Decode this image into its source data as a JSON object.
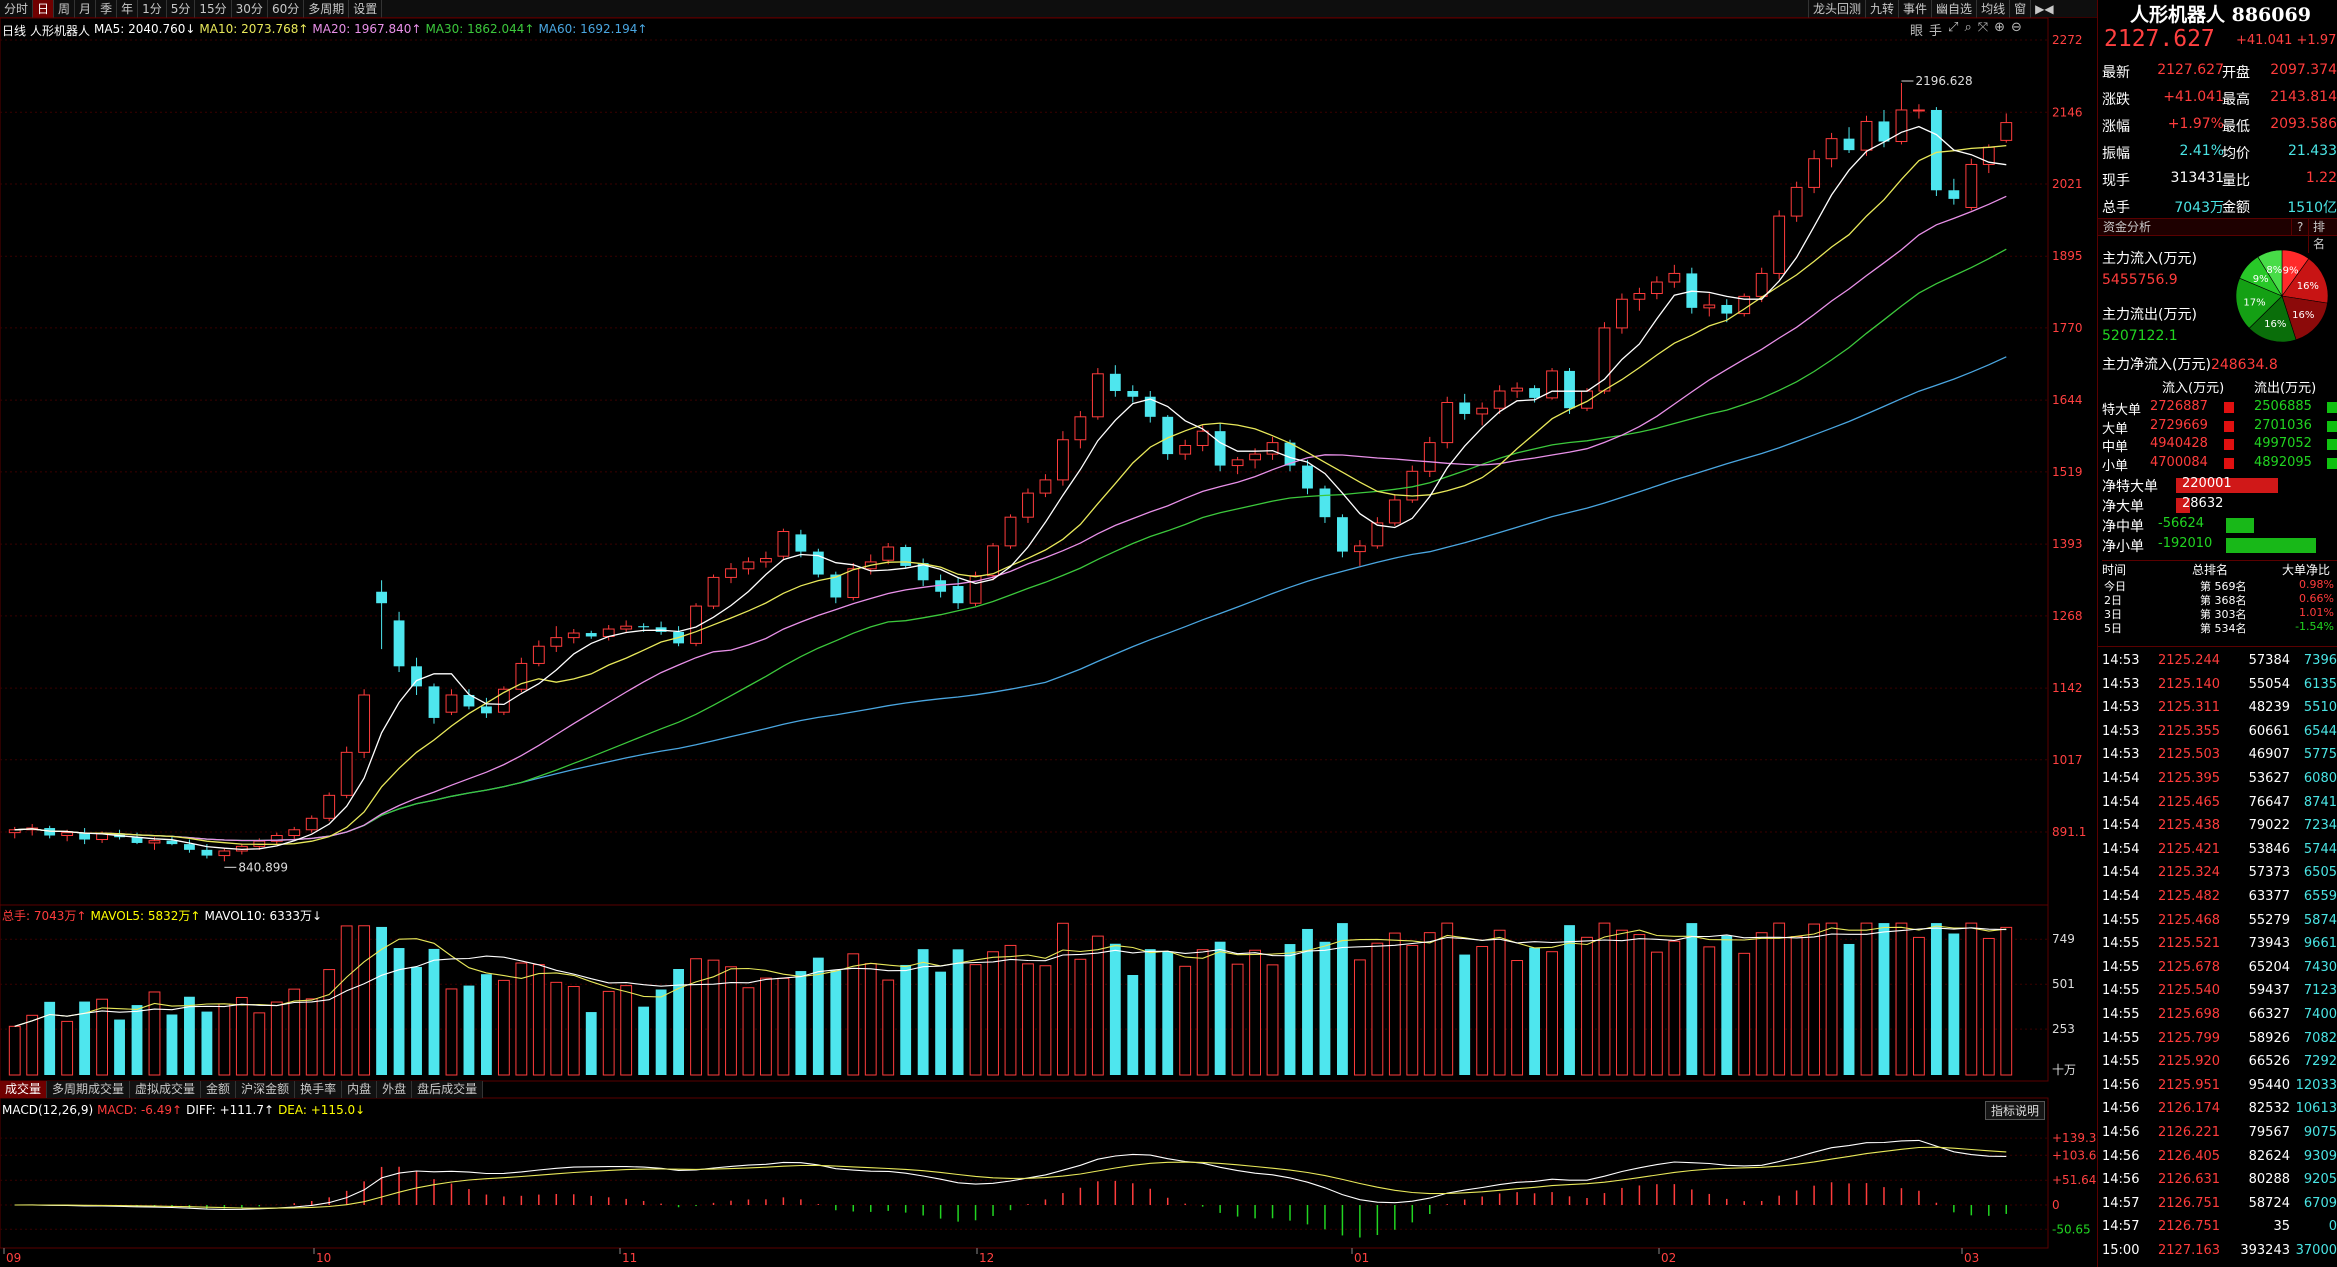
{
  "toolbar": {
    "period_tabs": [
      "分时",
      "日",
      "周",
      "月",
      "季",
      "年",
      "1分",
      "5分",
      "15分",
      "30分",
      "60分",
      "多周期",
      "设置"
    ],
    "active_period": "日",
    "right_tabs": [
      "龙头回测",
      "九转",
      "事件",
      "幽自选",
      "均线",
      "窗",
      "▶◀"
    ],
    "tool_icons": [
      "眼",
      "手",
      "⤢",
      "⌕",
      "⤧",
      "⊕",
      "⊖"
    ]
  },
  "main_legend": {
    "period_label": "日线",
    "stock_name": "人形机器人",
    "ma5": "MA5: 2040.760↓",
    "ma10": "MA10: 2073.768↑",
    "ma20": "MA20: 1967.840↑",
    "ma30": "MA30: 1862.044↑",
    "ma60": "MA60: 1692.194↑"
  },
  "price_axis": [
    "2272",
    "2146",
    "2021",
    "1895",
    "1770",
    "1644",
    "1519",
    "1393",
    "1268",
    "1142",
    "1017",
    "891.1"
  ],
  "annotations": {
    "high": "2196.628",
    "low": "840.899"
  },
  "vol_legend": {
    "total": "总手: 7043万↑",
    "mavol5": "MAVOL5: 5832万↑",
    "mavol10": "MAVOL10: 6333万↓"
  },
  "vol_axis": [
    "749",
    "501",
    "253",
    "十万"
  ],
  "indicator_tabs": [
    "成交量",
    "多周期成交量",
    "虚拟成交量",
    "金额",
    "沪深金额",
    "换手率",
    "内盘",
    "外盘",
    "盘后成交量"
  ],
  "active_indicator": "成交量",
  "indicator_explain": "指标说明",
  "macd_legend": {
    "name": "MACD(12,26,9)",
    "macd": "MACD: -6.49↑",
    "diff": "DIFF: +111.7↑",
    "dea": "DEA: +115.0↓"
  },
  "macd_axis": [
    "+139.3",
    "+103.6",
    "+51.64",
    "0",
    "-50.65"
  ],
  "x_axis": [
    "09",
    "10",
    "11",
    "12",
    "01",
    "02",
    "03"
  ],
  "colors": {
    "up": "#ff3c3c",
    "down": "#4ee6ee",
    "ma5": "#ffffff",
    "ma10": "#e8e85a",
    "ma20": "#e890e8",
    "ma30": "#3cc83c",
    "ma60": "#4aa6e0"
  },
  "chart_data": {
    "type": "candlestick",
    "x_months": [
      "09",
      "10",
      "11",
      "12",
      "01",
      "02",
      "03"
    ],
    "ylim": [
      840,
      2272
    ],
    "candles": [
      [
        890,
        900,
        880,
        895
      ],
      [
        895,
        905,
        885,
        898
      ],
      [
        898,
        902,
        880,
        885
      ],
      [
        885,
        895,
        875,
        890
      ],
      [
        890,
        898,
        870,
        878
      ],
      [
        878,
        892,
        872,
        888
      ],
      [
        888,
        895,
        878,
        882
      ],
      [
        882,
        890,
        870,
        872
      ],
      [
        872,
        882,
        860,
        876
      ],
      [
        876,
        885,
        868,
        870
      ],
      [
        870,
        878,
        855,
        860
      ],
      [
        860,
        870,
        845,
        850
      ],
      [
        850,
        862,
        840,
        858
      ],
      [
        858,
        870,
        852,
        866
      ],
      [
        866,
        880,
        860,
        875
      ],
      [
        875,
        890,
        870,
        885
      ],
      [
        885,
        900,
        878,
        895
      ],
      [
        895,
        920,
        890,
        915
      ],
      [
        915,
        960,
        910,
        955
      ],
      [
        955,
        1040,
        950,
        1030
      ],
      [
        1030,
        1140,
        1020,
        1130
      ],
      [
        1310,
        1330,
        1210,
        1290
      ],
      [
        1260,
        1275,
        1170,
        1180
      ],
      [
        1180,
        1195,
        1130,
        1145
      ],
      [
        1145,
        1150,
        1080,
        1090
      ],
      [
        1100,
        1140,
        1095,
        1130
      ],
      [
        1130,
        1140,
        1105,
        1110
      ],
      [
        1110,
        1125,
        1090,
        1098
      ],
      [
        1100,
        1145,
        1095,
        1140
      ],
      [
        1140,
        1195,
        1135,
        1185
      ],
      [
        1185,
        1225,
        1180,
        1215
      ],
      [
        1215,
        1250,
        1205,
        1230
      ],
      [
        1230,
        1245,
        1220,
        1238
      ],
      [
        1238,
        1242,
        1228,
        1232
      ],
      [
        1232,
        1252,
        1225,
        1245
      ],
      [
        1245,
        1260,
        1240,
        1250
      ],
      [
        1250,
        1255,
        1240,
        1248
      ],
      [
        1248,
        1258,
        1235,
        1240
      ],
      [
        1240,
        1250,
        1215,
        1220
      ],
      [
        1220,
        1290,
        1215,
        1285
      ],
      [
        1285,
        1340,
        1280,
        1335
      ],
      [
        1335,
        1360,
        1325,
        1350
      ],
      [
        1350,
        1370,
        1340,
        1362
      ],
      [
        1362,
        1380,
        1352,
        1368
      ],
      [
        1372,
        1420,
        1365,
        1415
      ],
      [
        1410,
        1418,
        1370,
        1380
      ],
      [
        1380,
        1385,
        1335,
        1340
      ],
      [
        1340,
        1345,
        1290,
        1300
      ],
      [
        1300,
        1360,
        1295,
        1350
      ],
      [
        1350,
        1375,
        1340,
        1362
      ],
      [
        1365,
        1395,
        1358,
        1388
      ],
      [
        1388,
        1392,
        1350,
        1355
      ],
      [
        1360,
        1368,
        1320,
        1330
      ],
      [
        1330,
        1340,
        1300,
        1310
      ],
      [
        1320,
        1335,
        1280,
        1290
      ],
      [
        1290,
        1345,
        1285,
        1338
      ],
      [
        1338,
        1395,
        1330,
        1390
      ],
      [
        1390,
        1445,
        1385,
        1440
      ],
      [
        1440,
        1490,
        1430,
        1482
      ],
      [
        1482,
        1515,
        1475,
        1505
      ],
      [
        1505,
        1590,
        1495,
        1575
      ],
      [
        1575,
        1625,
        1560,
        1615
      ],
      [
        1615,
        1700,
        1610,
        1690
      ],
      [
        1690,
        1705,
        1650,
        1660
      ],
      [
        1660,
        1670,
        1640,
        1650
      ],
      [
        1650,
        1660,
        1605,
        1615
      ],
      [
        1615,
        1618,
        1540,
        1550
      ],
      [
        1550,
        1575,
        1540,
        1565
      ],
      [
        1565,
        1600,
        1555,
        1590
      ],
      [
        1590,
        1605,
        1520,
        1530
      ],
      [
        1530,
        1545,
        1515,
        1540
      ],
      [
        1540,
        1560,
        1525,
        1550
      ],
      [
        1550,
        1580,
        1540,
        1570
      ],
      [
        1570,
        1575,
        1520,
        1530
      ],
      [
        1530,
        1540,
        1480,
        1490
      ],
      [
        1490,
        1495,
        1430,
        1440
      ],
      [
        1440,
        1445,
        1370,
        1380
      ],
      [
        1380,
        1400,
        1355,
        1390
      ],
      [
        1390,
        1440,
        1385,
        1430
      ],
      [
        1430,
        1480,
        1425,
        1470
      ],
      [
        1470,
        1530,
        1465,
        1520
      ],
      [
        1520,
        1580,
        1510,
        1570
      ],
      [
        1570,
        1650,
        1560,
        1640
      ],
      [
        1640,
        1655,
        1610,
        1620
      ],
      [
        1620,
        1640,
        1600,
        1630
      ],
      [
        1630,
        1670,
        1620,
        1660
      ],
      [
        1660,
        1675,
        1648,
        1665
      ],
      [
        1665,
        1670,
        1640,
        1648
      ],
      [
        1648,
        1700,
        1645,
        1695
      ],
      [
        1695,
        1700,
        1620,
        1630
      ],
      [
        1630,
        1665,
        1625,
        1660
      ],
      [
        1660,
        1780,
        1655,
        1770
      ],
      [
        1770,
        1830,
        1760,
        1820
      ],
      [
        1820,
        1840,
        1800,
        1830
      ],
      [
        1830,
        1860,
        1820,
        1850
      ],
      [
        1850,
        1880,
        1840,
        1865
      ],
      [
        1865,
        1875,
        1795,
        1805
      ],
      [
        1805,
        1830,
        1790,
        1810
      ],
      [
        1810,
        1820,
        1780,
        1795
      ],
      [
        1795,
        1830,
        1790,
        1825
      ],
      [
        1825,
        1875,
        1815,
        1865
      ],
      [
        1865,
        1975,
        1855,
        1965
      ],
      [
        1965,
        2025,
        1955,
        2015
      ],
      [
        2015,
        2080,
        2005,
        2065
      ],
      [
        2065,
        2110,
        2050,
        2100
      ],
      [
        2100,
        2120,
        2075,
        2080
      ],
      [
        2080,
        2140,
        2070,
        2130
      ],
      [
        2130,
        2150,
        2085,
        2095
      ],
      [
        2095,
        2197,
        2090,
        2150
      ],
      [
        2150,
        2160,
        2135,
        2150
      ],
      [
        2150,
        2155,
        2000,
        2010
      ],
      [
        2010,
        2030,
        1985,
        1995
      ],
      [
        1980,
        2065,
        1975,
        2055
      ],
      [
        2055,
        2090,
        2040,
        2085
      ],
      [
        2097,
        2144,
        2093,
        2128
      ]
    ],
    "volume_total": "7043万",
    "macd": {
      "diff": 111.7,
      "dea": 115.0,
      "macd": -6.49
    }
  },
  "panel": {
    "title": "人形机器人 886069",
    "price": "2127.627",
    "change": "+41.041",
    "change_pct": "+1.97%",
    "quote": [
      {
        "l1": "最新",
        "v1": "2127.627",
        "c1": "red",
        "l2": "开盘",
        "v2": "2097.374",
        "c2": "red"
      },
      {
        "l1": "涨跌",
        "v1": "+41.041",
        "c1": "red",
        "l2": "最高",
        "v2": "2143.814",
        "c2": "red"
      },
      {
        "l1": "涨幅",
        "v1": "+1.97%",
        "c1": "red",
        "l2": "最低",
        "v2": "2093.586",
        "c2": "red"
      },
      {
        "l1": "振幅",
        "v1": "2.41%",
        "c1": "cyan",
        "l2": "均价",
        "v2": "21.433",
        "c2": "cyan"
      },
      {
        "l1": "现手",
        "v1": "313431",
        "c1": "white",
        "l2": "量比",
        "v2": "1.22",
        "c2": "red"
      },
      {
        "l1": "总手",
        "v1": "7043万",
        "c1": "cyan",
        "l2": "金额",
        "v2": "1510亿",
        "c2": "cyan"
      }
    ],
    "fund_head": "资金分析",
    "fund_head_q": "?",
    "fund_head_rank": "排名",
    "inflow_label": "主力流入(万元)",
    "inflow_value": "5455756.9",
    "outflow_label": "主力流出(万元)",
    "outflow_value": "5207122.1",
    "net_label": "主力净流入(万元)",
    "net_value": "248634.8",
    "pie": [
      {
        "label": "9%",
        "value": 9,
        "color": "#ff2a2a"
      },
      {
        "label": "16%",
        "value": 16,
        "color": "#c81414"
      },
      {
        "label": "16%",
        "value": 16,
        "color": "#8c0a0a"
      },
      {
        "label": "16%",
        "value": 16,
        "color": "#0a6e0a"
      },
      {
        "label": "17%",
        "value": 17,
        "color": "#14a014"
      },
      {
        "label": "9%",
        "value": 9,
        "color": "#28c828"
      },
      {
        "label": "8%",
        "value": 8,
        "color": "#48dc48"
      }
    ],
    "flow_cols": {
      "in": "流入(万元)",
      "out": "流出(万元)"
    },
    "flow_rows": [
      {
        "name": "特大单",
        "in": "2726887",
        "out": "2506885"
      },
      {
        "name": "大单",
        "in": "2729669",
        "out": "2701036"
      },
      {
        "name": "中单",
        "in": "4940428",
        "out": "4997052"
      },
      {
        "name": "小单",
        "in": "4700084",
        "out": "4892095"
      }
    ],
    "net_rows": [
      {
        "name": "净特大单",
        "value": "220001",
        "sign": 1,
        "mag": 0.93
      },
      {
        "name": "净大单",
        "value": "28632",
        "sign": 1,
        "mag": 0.13
      },
      {
        "name": "净中单",
        "value": "-56624",
        "sign": -1,
        "mag": 0.25
      },
      {
        "name": "净小单",
        "value": "-192010",
        "sign": -1,
        "mag": 0.82
      }
    ],
    "rank_cols": {
      "time": "时间",
      "rank": "总排名",
      "net": "大单净比"
    },
    "rank_rows": [
      {
        "time": "今日",
        "rank": "第 569名",
        "net": "0.98%"
      },
      {
        "time": "2日",
        "rank": "第 368名",
        "net": "0.66%"
      },
      {
        "time": "3日",
        "rank": "第 303名",
        "net": "1.01%"
      },
      {
        "time": "5日",
        "rank": "第 534名",
        "net": "-1.54%"
      }
    ],
    "ticks": [
      {
        "t": "14:53",
        "p": "2125.244",
        "v": "57384",
        "n": "7396"
      },
      {
        "t": "14:53",
        "p": "2125.140",
        "v": "55054",
        "n": "6135"
      },
      {
        "t": "14:53",
        "p": "2125.311",
        "v": "48239",
        "n": "5510"
      },
      {
        "t": "14:53",
        "p": "2125.355",
        "v": "60661",
        "n": "6544"
      },
      {
        "t": "14:53",
        "p": "2125.503",
        "v": "46907",
        "n": "5775"
      },
      {
        "t": "14:54",
        "p": "2125.395",
        "v": "53627",
        "n": "6080"
      },
      {
        "t": "14:54",
        "p": "2125.465",
        "v": "76647",
        "n": "8741"
      },
      {
        "t": "14:54",
        "p": "2125.438",
        "v": "79022",
        "n": "7234"
      },
      {
        "t": "14:54",
        "p": "2125.421",
        "v": "53846",
        "n": "5744"
      },
      {
        "t": "14:54",
        "p": "2125.324",
        "v": "57373",
        "n": "6505"
      },
      {
        "t": "14:54",
        "p": "2125.482",
        "v": "63377",
        "n": "6559"
      },
      {
        "t": "14:55",
        "p": "2125.468",
        "v": "55279",
        "n": "5874"
      },
      {
        "t": "14:55",
        "p": "2125.521",
        "v": "73943",
        "n": "9661"
      },
      {
        "t": "14:55",
        "p": "2125.678",
        "v": "65204",
        "n": "7430"
      },
      {
        "t": "14:55",
        "p": "2125.540",
        "v": "59437",
        "n": "7123"
      },
      {
        "t": "14:55",
        "p": "2125.698",
        "v": "66327",
        "n": "7400"
      },
      {
        "t": "14:55",
        "p": "2125.799",
        "v": "58926",
        "n": "7082"
      },
      {
        "t": "14:55",
        "p": "2125.920",
        "v": "66526",
        "n": "7292"
      },
      {
        "t": "14:56",
        "p": "2125.951",
        "v": "95440",
        "n": "12033"
      },
      {
        "t": "14:56",
        "p": "2126.174",
        "v": "82532",
        "n": "10613"
      },
      {
        "t": "14:56",
        "p": "2126.221",
        "v": "79567",
        "n": "9075"
      },
      {
        "t": "14:56",
        "p": "2126.405",
        "v": "82624",
        "n": "9309"
      },
      {
        "t": "14:56",
        "p": "2126.631",
        "v": "80288",
        "n": "9205"
      },
      {
        "t": "14:57",
        "p": "2126.751",
        "v": "58724",
        "n": "6709"
      },
      {
        "t": "14:57",
        "p": "2126.751",
        "v": "35",
        "n": "0"
      },
      {
        "t": "15:00",
        "p": "2127.163",
        "v": "393243",
        "n": "37000"
      }
    ]
  }
}
